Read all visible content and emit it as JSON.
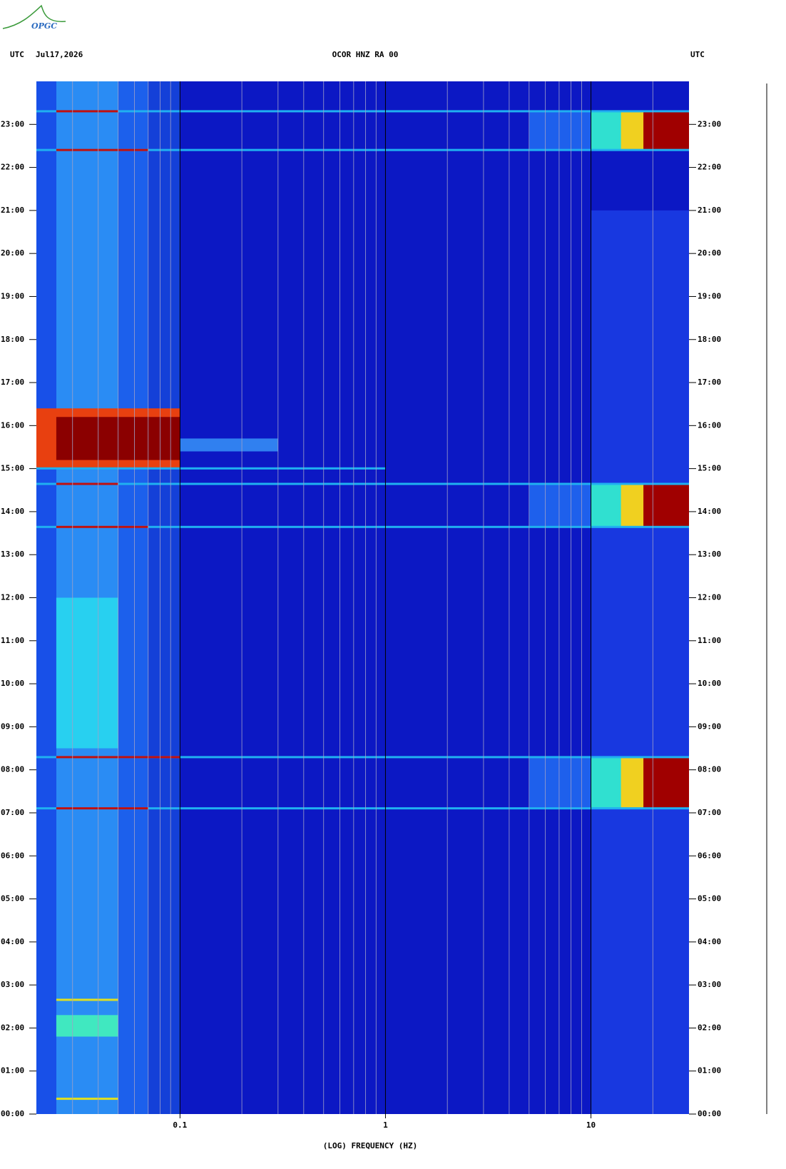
{
  "logo": "OPGC",
  "chart_data": {
    "type": "spectrogram",
    "header_left": "UTC",
    "date": "Jul17,2026",
    "title": "OCOR HNZ RA 00",
    "header_right": "UTC",
    "xlabel": "(LOG) FREQUENCY (HZ)",
    "log_x": true,
    "xlim": [
      0.02,
      30
    ],
    "ylim": [
      0,
      24
    ],
    "xticks": [
      0.1,
      1,
      10
    ],
    "minor_xticks": [
      0.03,
      0.04,
      0.05,
      0.06,
      0.07,
      0.08,
      0.09,
      0.2,
      0.3,
      0.4,
      0.5,
      0.6,
      0.7,
      0.8,
      0.9,
      2,
      3,
      4,
      5,
      6,
      7,
      8,
      9,
      20
    ],
    "yticks": [
      {
        "value": 0,
        "label": "00:00"
      },
      {
        "value": 1,
        "label": "01:00"
      },
      {
        "value": 2,
        "label": "02:00"
      },
      {
        "value": 3,
        "label": "03:00"
      },
      {
        "value": 4,
        "label": "04:00"
      },
      {
        "value": 5,
        "label": "05:00"
      },
      {
        "value": 6,
        "label": "06:00"
      },
      {
        "value": 7,
        "label": "07:00"
      },
      {
        "value": 8,
        "label": "08:00"
      },
      {
        "value": 9,
        "label": "09:00"
      },
      {
        "value": 10,
        "label": "10:00"
      },
      {
        "value": 11,
        "label": "11:00"
      },
      {
        "value": 12,
        "label": "12:00"
      },
      {
        "value": 13,
        "label": "13:00"
      },
      {
        "value": 14,
        "label": "14:00"
      },
      {
        "value": 15,
        "label": "15:00"
      },
      {
        "value": 16,
        "label": "16:00"
      },
      {
        "value": 17,
        "label": "17:00"
      },
      {
        "value": 18,
        "label": "18:00"
      },
      {
        "value": 19,
        "label": "19:00"
      },
      {
        "value": 20,
        "label": "20:00"
      },
      {
        "value": 21,
        "label": "21:00"
      },
      {
        "value": 22,
        "label": "22:00"
      },
      {
        "value": 23,
        "label": "23:00"
      }
    ],
    "background": "#0c18c4",
    "regions": [
      {
        "x": [
          0.02,
          0.025
        ],
        "y": [
          0,
          24
        ],
        "color": "#1850e8"
      },
      {
        "x": [
          0.025,
          0.05
        ],
        "y": [
          0,
          24
        ],
        "color": "#2a8cf4"
      },
      {
        "x": [
          0.05,
          0.07
        ],
        "y": [
          0,
          24
        ],
        "color": "#1c60ec"
      },
      {
        "x": [
          0.07,
          0.1
        ],
        "y": [
          0,
          24
        ],
        "color": "#1440d8"
      },
      {
        "x": [
          10,
          30
        ],
        "y": [
          0,
          21
        ],
        "color": "#1838e0"
      },
      {
        "x": [
          0.025,
          0.05
        ],
        "y": [
          8.5,
          12
        ],
        "color": "#28d0f0"
      },
      {
        "x": [
          0.025,
          0.05
        ],
        "y": [
          1.8,
          2.3
        ],
        "color": "#40e8c0"
      },
      {
        "x": [
          0.02,
          0.1
        ],
        "y": [
          15,
          16.4
        ],
        "color": "#e84010"
      },
      {
        "x": [
          0.025,
          0.1
        ],
        "y": [
          15.2,
          16.2
        ],
        "color": "#8b0000"
      },
      {
        "x": [
          0.1,
          0.3
        ],
        "y": [
          15.4,
          15.7
        ],
        "color": "#3080f0"
      },
      {
        "x": [
          5,
          30
        ],
        "y": [
          22.4,
          23.3
        ],
        "color": "#1e60ec"
      },
      {
        "x": [
          10,
          30
        ],
        "y": [
          22.4,
          23.3
        ],
        "color": "#30e0d0"
      },
      {
        "x": [
          14,
          30
        ],
        "y": [
          22.4,
          23.3
        ],
        "color": "#f0d020"
      },
      {
        "x": [
          18,
          30
        ],
        "y": [
          22.4,
          23.3
        ],
        "color": "#a00000"
      },
      {
        "x": [
          5,
          30
        ],
        "y": [
          13.65,
          14.65
        ],
        "color": "#1e60ec"
      },
      {
        "x": [
          10,
          30
        ],
        "y": [
          13.65,
          14.65
        ],
        "color": "#30e0d0"
      },
      {
        "x": [
          14,
          30
        ],
        "y": [
          13.65,
          14.65
        ],
        "color": "#f0d020"
      },
      {
        "x": [
          18,
          30
        ],
        "y": [
          13.65,
          14.65
        ],
        "color": "#a00000"
      },
      {
        "x": [
          5,
          30
        ],
        "y": [
          7.1,
          8.3
        ],
        "color": "#1e60ec"
      },
      {
        "x": [
          10,
          30
        ],
        "y": [
          7.1,
          8.3
        ],
        "color": "#30e0d0"
      },
      {
        "x": [
          14,
          30
        ],
        "y": [
          7.1,
          8.3
        ],
        "color": "#f0d020"
      },
      {
        "x": [
          18,
          30
        ],
        "y": [
          7.1,
          8.3
        ],
        "color": "#a00000"
      },
      {
        "x": [
          0.02,
          30
        ],
        "y": [
          23.28,
          23.33
        ],
        "color": "#20b0f0"
      },
      {
        "x": [
          0.02,
          30
        ],
        "y": [
          22.38,
          22.43
        ],
        "color": "#20b0f0"
      },
      {
        "x": [
          0.02,
          30
        ],
        "y": [
          14.62,
          14.67
        ],
        "color": "#20b0f0"
      },
      {
        "x": [
          0.02,
          30
        ],
        "y": [
          13.62,
          13.67
        ],
        "color": "#20b0f0"
      },
      {
        "x": [
          0.02,
          1
        ],
        "y": [
          14.98,
          15.03
        ],
        "color": "#20b0f0"
      },
      {
        "x": [
          0.02,
          30
        ],
        "y": [
          8.27,
          8.32
        ],
        "color": "#20b0f0"
      },
      {
        "x": [
          0.02,
          30
        ],
        "y": [
          7.08,
          7.13
        ],
        "color": "#20b0f0"
      },
      {
        "x": [
          0.025,
          0.05
        ],
        "y": [
          23.28,
          23.33
        ],
        "color": "#c01010"
      },
      {
        "x": [
          0.025,
          0.07
        ],
        "y": [
          22.38,
          22.43
        ],
        "color": "#c01010"
      },
      {
        "x": [
          0.025,
          0.05
        ],
        "y": [
          14.62,
          14.67
        ],
        "color": "#c01010"
      },
      {
        "x": [
          0.025,
          0.07
        ],
        "y": [
          13.62,
          13.67
        ],
        "color": "#c01010"
      },
      {
        "x": [
          0.025,
          0.1
        ],
        "y": [
          8.27,
          8.32
        ],
        "color": "#c01010"
      },
      {
        "x": [
          0.025,
          0.07
        ],
        "y": [
          7.08,
          7.13
        ],
        "color": "#c01010"
      },
      {
        "x": [
          0.025,
          0.05
        ],
        "y": [
          2.63,
          2.68
        ],
        "color": "#e0e020"
      },
      {
        "x": [
          0.025,
          0.05
        ],
        "y": [
          0.33,
          0.38
        ],
        "color": "#e0e020"
      }
    ]
  }
}
